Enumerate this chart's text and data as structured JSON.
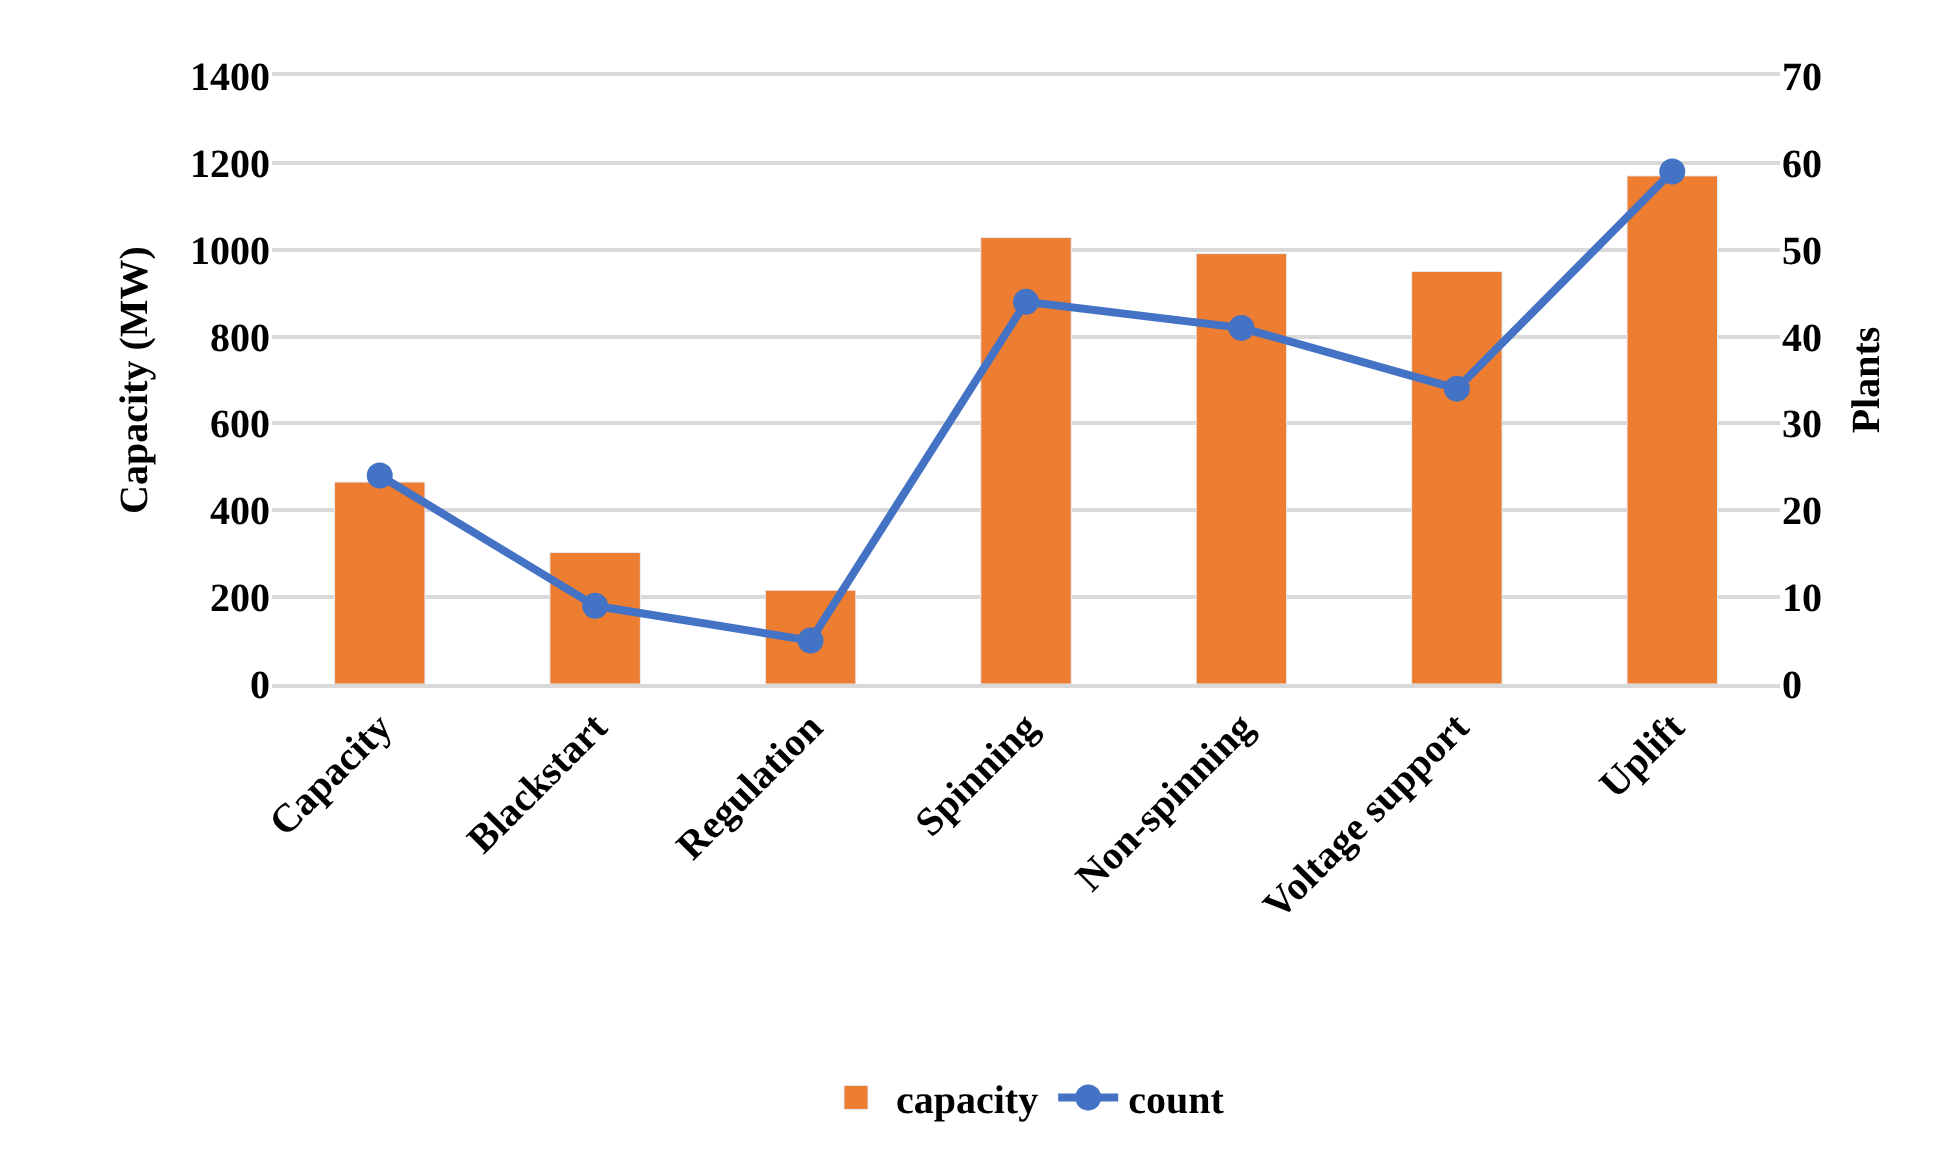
{
  "chart_data": {
    "type": "bar",
    "categories": [
      "Capacity",
      "Blackstart",
      "Regulation",
      "Spinning",
      "Non-spinning",
      "Voltage support",
      "Uplift"
    ],
    "series": [
      {
        "name": "capacity",
        "color": "#ed7d31",
        "values": [
          465,
          303,
          216,
          1028,
          991,
          950,
          1170
        ]
      },
      {
        "name": "count",
        "type": "line",
        "axis": "y2",
        "color": "#4472c4",
        "marker": "circle",
        "values": [
          24,
          9,
          5,
          44,
          41,
          34,
          59
        ]
      }
    ],
    "ylabel": "Capacity (MW)",
    "y2label": "Plants",
    "ylim": [
      0,
      1400
    ],
    "yticks": [
      0,
      200,
      400,
      600,
      800,
      1000,
      1200,
      1400
    ],
    "y2lim": [
      0,
      70
    ],
    "y2ticks": [
      0,
      10,
      20,
      30,
      40,
      50,
      60,
      70
    ],
    "grid": "y",
    "legend": "bottom"
  }
}
